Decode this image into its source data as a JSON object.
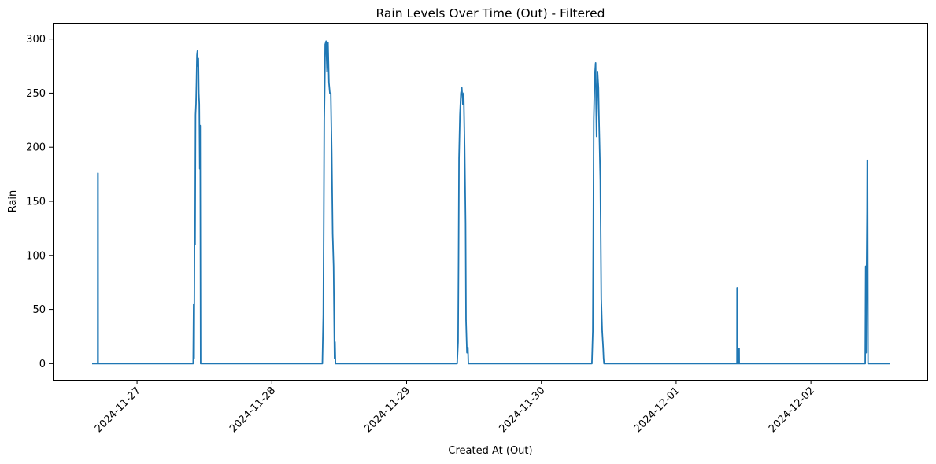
{
  "chart_data": {
    "type": "line",
    "title": "Rain Levels Over Time (Out) - Filtered",
    "xlabel": "Created At (Out)",
    "ylabel": "Rain",
    "x_ticks": [
      "2024-11-27",
      "2024-11-28",
      "2024-11-29",
      "2024-11-30",
      "2024-12-01",
      "2024-12-02"
    ],
    "y_ticks": [
      "0",
      "50",
      "100",
      "150",
      "200",
      "250",
      "300"
    ],
    "xlim": [
      "2024-11-26T16:00",
      "2024-12-02T14:00"
    ],
    "ylim": [
      -15,
      315
    ],
    "grid": false,
    "legend": "none",
    "series": [
      {
        "color": "#1f77b4",
        "x": [
          "2024-11-26T16:00",
          "2024-11-26T17:00",
          "2024-11-26T17:01",
          "2024-11-26T17:03",
          "2024-11-26T17:04",
          "2024-11-27T10:00",
          "2024-11-27T10:05",
          "2024-11-27T10:10",
          "2024-11-27T10:15",
          "2024-11-27T10:20",
          "2024-11-27T10:25",
          "2024-11-27T10:30",
          "2024-11-27T10:35",
          "2024-11-27T10:40",
          "2024-11-27T10:45",
          "2024-11-27T10:50",
          "2024-11-27T10:55",
          "2024-11-27T11:00",
          "2024-11-27T11:05",
          "2024-11-27T11:10",
          "2024-11-27T11:15",
          "2024-11-27T11:20",
          "2024-11-27T11:30",
          "2024-11-27T11:40",
          "2024-11-27T11:50",
          "2024-11-27T12:00",
          "2024-11-28T09:00",
          "2024-11-28T09:10",
          "2024-11-28T09:15",
          "2024-11-28T09:20",
          "2024-11-28T09:25",
          "2024-11-28T09:30",
          "2024-11-28T09:40",
          "2024-11-28T09:50",
          "2024-11-28T10:00",
          "2024-11-28T10:10",
          "2024-11-28T10:20",
          "2024-11-28T10:30",
          "2024-11-28T10:40",
          "2024-11-28T10:50",
          "2024-11-28T11:00",
          "2024-11-28T11:10",
          "2024-11-28T11:15",
          "2024-11-28T11:20",
          "2024-11-28T11:30",
          "2024-11-29T09:00",
          "2024-11-29T09:10",
          "2024-11-29T09:15",
          "2024-11-29T09:20",
          "2024-11-29T09:30",
          "2024-11-29T09:40",
          "2024-11-29T09:50",
          "2024-11-29T10:00",
          "2024-11-29T10:10",
          "2024-11-29T10:20",
          "2024-11-29T10:30",
          "2024-11-29T10:35",
          "2024-11-29T10:45",
          "2024-11-29T10:55",
          "2024-11-29T11:00",
          "2024-11-29T11:15",
          "2024-11-29T11:30",
          "2024-11-30T09:00",
          "2024-11-30T09:10",
          "2024-11-30T09:15",
          "2024-11-30T09:20",
          "2024-11-30T09:30",
          "2024-11-30T09:40",
          "2024-11-30T09:45",
          "2024-11-30T09:50",
          "2024-11-30T10:00",
          "2024-11-30T10:10",
          "2024-11-30T10:15",
          "2024-11-30T10:20",
          "2024-11-30T10:30",
          "2024-11-30T10:40",
          "2024-11-30T10:50",
          "2024-11-30T11:00",
          "2024-11-30T11:05",
          "2024-11-30T11:10",
          "2024-11-30T11:15",
          "2024-11-30T11:30",
          "2024-12-01T10:50",
          "2024-12-01T10:51",
          "2024-12-01T10:53",
          "2024-12-01T10:54",
          "2024-12-01T11:10",
          "2024-12-01T11:11",
          "2024-12-01T11:13",
          "2024-12-01T11:14",
          "2024-12-02T09:40",
          "2024-12-02T09:45",
          "2024-12-02T09:50",
          "2024-12-02T09:55",
          "2024-12-02T10:00",
          "2024-12-02T10:02",
          "2024-12-02T10:05",
          "2024-12-02T10:10",
          "2024-12-02T10:12",
          "2024-12-02T10:15",
          "2024-12-02T14:00"
        ],
        "y": [
          0,
          0,
          176,
          176,
          0,
          0,
          55,
          5,
          130,
          110,
          230,
          240,
          260,
          285,
          289,
          275,
          282,
          250,
          240,
          180,
          220,
          0,
          0,
          0,
          0,
          0,
          0,
          45,
          130,
          225,
          255,
          295,
          298,
          270,
          297,
          260,
          250,
          250,
          195,
          120,
          90,
          5,
          20,
          0,
          0,
          0,
          20,
          95,
          190,
          230,
          250,
          255,
          240,
          250,
          200,
          130,
          40,
          10,
          15,
          0,
          0,
          0,
          0,
          30,
          120,
          225,
          265,
          278,
          240,
          210,
          270,
          255,
          230,
          210,
          170,
          60,
          30,
          15,
          5,
          0,
          0,
          0,
          0,
          70,
          70,
          0,
          0,
          14,
          14,
          0,
          0,
          90,
          10,
          88,
          140,
          188,
          180,
          0,
          0,
          0,
          0
        ]
      }
    ]
  }
}
